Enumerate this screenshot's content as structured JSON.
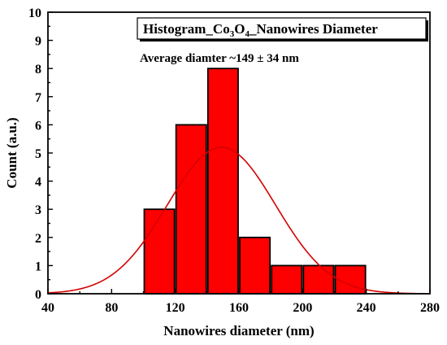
{
  "chart_data": {
    "type": "bar",
    "title_main": "Histogram_Co",
    "title_sub1": "3",
    "title_mid": "O",
    "title_sub2": "4",
    "title_rest": "_Nanowires Diameter",
    "annotation": "Average diamter ~149 ± 34 nm",
    "xlabel": "Nanowires diameter (nm)",
    "ylabel": "Count (a.u.)",
    "xlim": [
      40,
      280
    ],
    "ylim": [
      0,
      10
    ],
    "xticks": [
      "40",
      "80",
      "120",
      "160",
      "200",
      "240",
      "280"
    ],
    "yticks": [
      "0",
      "1",
      "2",
      "3",
      "4",
      "5",
      "6",
      "7",
      "8",
      "9",
      "10"
    ],
    "bins": [
      {
        "from": 100,
        "to": 120,
        "count": 3
      },
      {
        "from": 120,
        "to": 140,
        "count": 6
      },
      {
        "from": 140,
        "to": 160,
        "count": 8
      },
      {
        "from": 160,
        "to": 180,
        "count": 2
      },
      {
        "from": 180,
        "to": 200,
        "count": 1
      },
      {
        "from": 200,
        "to": 220,
        "count": 1
      },
      {
        "from": 220,
        "to": 240,
        "count": 1
      }
    ],
    "fit": {
      "type": "gaussian",
      "mean": 149,
      "sigma": 34,
      "peak": 5.2
    },
    "colors": {
      "bar_fill": "#ff0000",
      "bar_stroke": "#000000",
      "fit_line": "#d40000"
    }
  }
}
